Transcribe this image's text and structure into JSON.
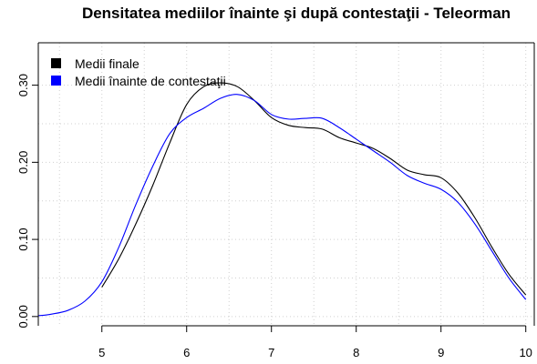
{
  "chart_data": {
    "type": "line",
    "title": "Densitatea mediilor înainte şi după contestaţii -  Teleorman",
    "xlabel": "",
    "ylabel": "",
    "xlim": [
      4.25,
      10.1
    ],
    "ylim": [
      -0.012,
      0.355
    ],
    "x_ticks": [
      5,
      6,
      7,
      8,
      9,
      10
    ],
    "x_tick_labels": [
      "5",
      "6",
      "7",
      "8",
      "9",
      "10"
    ],
    "y_ticks": [
      0.0,
      0.1,
      0.2,
      0.3
    ],
    "y_tick_labels": [
      "0.00",
      "0.10",
      "0.20",
      "0.30"
    ],
    "x_grid": [
      4.5,
      5,
      5.5,
      6,
      6.5,
      7,
      7.5,
      8,
      8.5,
      9,
      9.5,
      10
    ],
    "y_grid": [
      0.0,
      0.05,
      0.1,
      0.15,
      0.2,
      0.25,
      0.3
    ],
    "grid": true,
    "legend_position": "top-left",
    "series": [
      {
        "name": "Medii finale",
        "color": "#000000",
        "x": [
          5.0,
          5.2,
          5.4,
          5.6,
          5.8,
          6.0,
          6.2,
          6.4,
          6.6,
          6.8,
          7.0,
          7.2,
          7.4,
          7.6,
          7.8,
          8.0,
          8.2,
          8.4,
          8.6,
          8.8,
          9.0,
          9.2,
          9.4,
          9.6,
          9.8,
          10.0
        ],
        "y": [
          0.038,
          0.075,
          0.12,
          0.17,
          0.225,
          0.275,
          0.298,
          0.303,
          0.298,
          0.28,
          0.258,
          0.248,
          0.245,
          0.243,
          0.232,
          0.225,
          0.218,
          0.205,
          0.19,
          0.184,
          0.18,
          0.16,
          0.128,
          0.09,
          0.055,
          0.028
        ]
      },
      {
        "name": "Medii înainte de contestaţii",
        "color": "#0000ff",
        "x": [
          4.25,
          4.4,
          4.6,
          4.8,
          5.0,
          5.2,
          5.4,
          5.6,
          5.8,
          6.0,
          6.2,
          6.4,
          6.6,
          6.8,
          7.0,
          7.2,
          7.4,
          7.6,
          7.8,
          8.0,
          8.2,
          8.4,
          8.6,
          8.8,
          9.0,
          9.2,
          9.4,
          9.6,
          9.8,
          10.0
        ],
        "y": [
          0.001,
          0.003,
          0.008,
          0.02,
          0.045,
          0.09,
          0.145,
          0.195,
          0.237,
          0.258,
          0.27,
          0.283,
          0.288,
          0.28,
          0.262,
          0.256,
          0.257,
          0.257,
          0.245,
          0.23,
          0.215,
          0.2,
          0.183,
          0.173,
          0.165,
          0.148,
          0.12,
          0.085,
          0.05,
          0.022
        ]
      }
    ]
  }
}
